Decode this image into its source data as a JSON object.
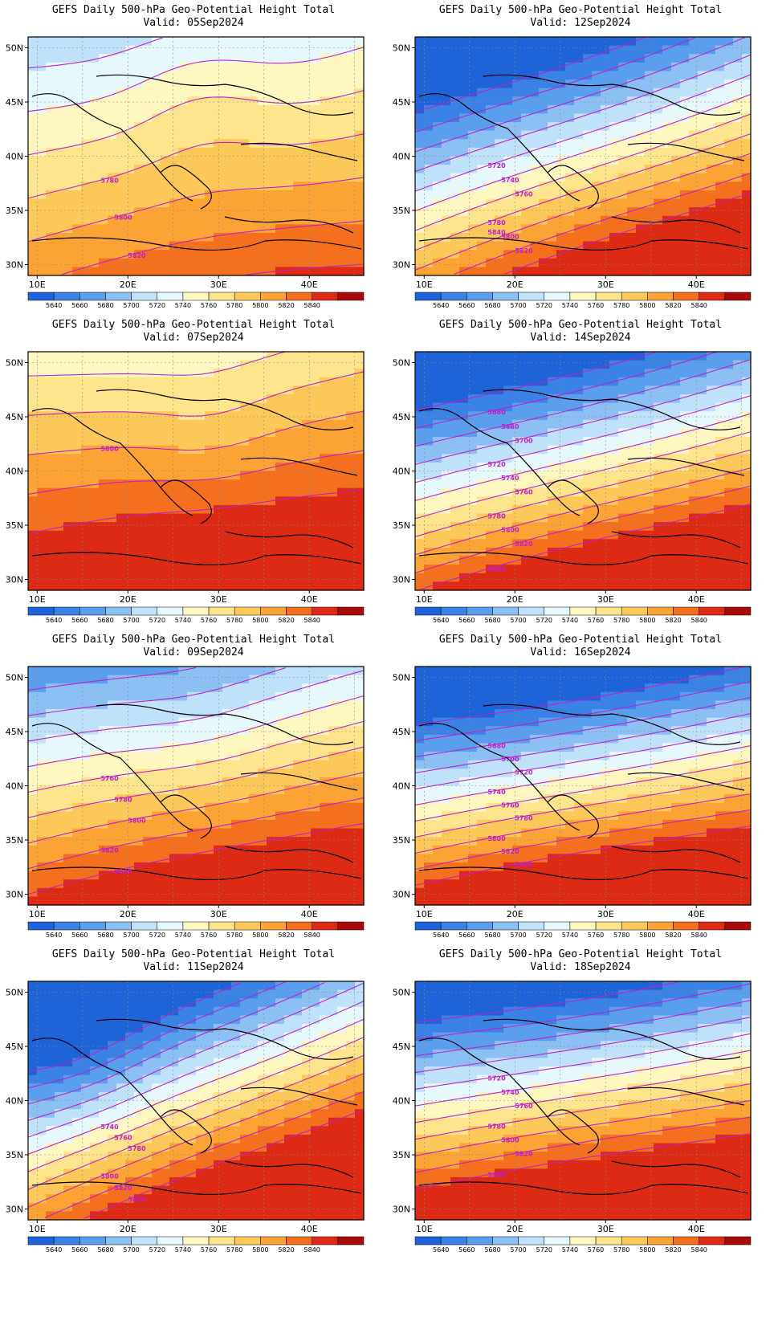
{
  "colorbar": {
    "levels": [
      "5640",
      "5660",
      "5680",
      "5700",
      "5720",
      "5740",
      "5760",
      "5780",
      "5800",
      "5820",
      "5840"
    ],
    "colors": [
      "#1e64d8",
      "#3a82e6",
      "#5a9eee",
      "#8cc0f4",
      "#bfe2fa",
      "#e6f8fc",
      "#fff7c0",
      "#fee48c",
      "#fdc85a",
      "#fca336",
      "#f4701e",
      "#dc2a14",
      "#a80c0a"
    ]
  },
  "axes": {
    "lat_ticks": [
      "50N",
      "45N",
      "40N",
      "35N",
      "30N"
    ],
    "lon_ticks": [
      "10E",
      "20E",
      "30E",
      "40E"
    ],
    "lat_range": [
      29,
      51
    ],
    "lon_range": [
      9,
      46
    ]
  },
  "contour_color": "#c020c8",
  "panels": [
    {
      "title": "GEFS Daily 500-hPa Geo-Potential Height Total",
      "valid": "Valid: 05Sep2024",
      "col": 0,
      "row": 0,
      "base": 5765,
      "lat_grad": -5.0,
      "lon_grad": 0.8,
      "bump": [
        {
          "lon": 28,
          "lat": 46,
          "amp": 15,
          "r": 8
        }
      ],
      "contour_labels": [
        "5780",
        "5800",
        "5820"
      ]
    },
    {
      "title": "GEFS Daily 500-hPa Geo-Potential Height Total",
      "valid": "Valid: 12Sep2024",
      "col": 1,
      "row": 0,
      "base": 5720,
      "lat_grad": -11.0,
      "lon_grad": 3.2,
      "bump": [],
      "contour_labels": [
        "5720",
        "5740",
        "5760",
        "5780",
        "5800",
        "5820",
        "5840"
      ]
    },
    {
      "title": "GEFS Daily 500-hPa Geo-Potential Height Total",
      "valid": "Valid: 07Sep2024",
      "col": 0,
      "row": 1,
      "base": 5808,
      "lat_grad": -5.5,
      "lon_grad": 0.6,
      "bump": [
        {
          "lon": 29,
          "lat": 44,
          "amp": -8,
          "r": 7
        }
      ],
      "contour_labels": [
        "5800"
      ]
    },
    {
      "title": "GEFS Daily 500-hPa Geo-Potential Height Total",
      "valid": "Valid: 14Sep2024",
      "col": 1,
      "row": 1,
      "base": 5730,
      "lat_grad": -12.0,
      "lon_grad": 2.6,
      "bump": [],
      "contour_labels": [
        "5660",
        "5680",
        "5700",
        "5720",
        "5740",
        "5760",
        "5780",
        "5800",
        "5820",
        "5840"
      ]
    },
    {
      "title": "GEFS Daily 500-hPa Geo-Potential Height Total",
      "valid": "Valid: 09Sep2024",
      "col": 0,
      "row": 2,
      "base": 5765,
      "lat_grad": -8.5,
      "lon_grad": 1.5,
      "bump": [
        {
          "lon": 28,
          "lat": 46,
          "amp": -6,
          "r": 8
        }
      ],
      "contour_labels": [
        "5760",
        "5780",
        "5800",
        "5820",
        "5840"
      ]
    },
    {
      "title": "GEFS Daily 500-hPa Geo-Potential Height Total",
      "valid": "Valid: 16Sep2024",
      "col": 1,
      "row": 2,
      "base": 5725,
      "lat_grad": -13.5,
      "lon_grad": 2.0,
      "bump": [],
      "contour_labels": [
        "5680",
        "5700",
        "5720",
        "5740",
        "5760",
        "5780",
        "5800",
        "5820",
        "5840"
      ]
    },
    {
      "title": "GEFS Daily 500-hPa Geo-Potential Height Total",
      "valid": "Valid: 11Sep2024",
      "col": 0,
      "row": 3,
      "base": 5730,
      "lat_grad": -12.0,
      "lon_grad": 4.0,
      "bump": [
        {
          "lon": 14,
          "lat": 47,
          "amp": -20,
          "r": 8
        }
      ],
      "contour_labels": [
        "5740",
        "5760",
        "5780",
        "5800",
        "5820",
        "5840"
      ]
    },
    {
      "title": "GEFS Daily 500-hPa Geo-Potential Height Total",
      "valid": "Valid: 18Sep2024",
      "col": 1,
      "row": 3,
      "base": 5740,
      "lat_grad": -13.0,
      "lon_grad": 1.8,
      "bump": [],
      "contour_labels": [
        "5720",
        "5740",
        "5760",
        "5780",
        "5800",
        "5820",
        "5840"
      ]
    }
  ]
}
